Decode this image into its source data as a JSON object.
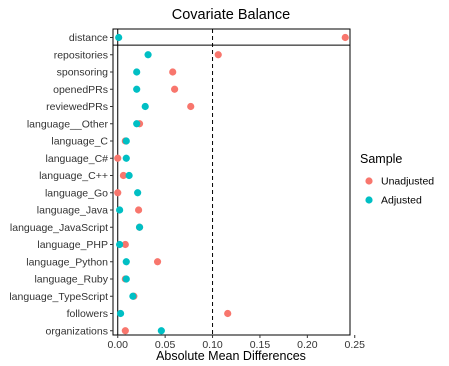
{
  "chart_data": {
    "type": "scatter",
    "title": "Covariate Balance",
    "xlabel": "Absolute Mean Differences",
    "ylabel": "",
    "xlim": [
      -0.005,
      0.245
    ],
    "x_ticks": [
      0.0,
      0.05,
      0.1,
      0.15,
      0.2,
      0.25
    ],
    "x_tick_labels": [
      "0.00",
      "0.05",
      "0.10",
      "0.15",
      "0.20",
      "0.25"
    ],
    "threshold": 0.1,
    "categories": [
      "distance",
      "repositories",
      "sponsoring",
      "openedPRs",
      "reviewedPRs",
      "language__Other",
      "language_C",
      "language_C#",
      "language_C++",
      "language_Go",
      "language_Java",
      "language_JavaScript",
      "language_PHP",
      "language_Python",
      "language_Ruby",
      "language_TypeScript",
      "followers",
      "organizations"
    ],
    "series": [
      {
        "name": "Unadjusted",
        "color": "#F8766D",
        "values": [
          0.24,
          0.106,
          0.058,
          0.06,
          0.077,
          0.023,
          0.008,
          0.0,
          0.006,
          0.0,
          0.022,
          0.023,
          0.008,
          0.042,
          0.008,
          0.017,
          0.116,
          0.008
        ]
      },
      {
        "name": "Adjusted",
        "color": "#00BFC4",
        "values": [
          0.001,
          0.032,
          0.02,
          0.02,
          0.029,
          0.02,
          0.009,
          0.009,
          0.012,
          0.021,
          0.002,
          0.023,
          0.002,
          0.009,
          0.009,
          0.016,
          0.003,
          0.046
        ]
      }
    ],
    "legend": {
      "title": "Sample",
      "position": "right"
    }
  }
}
